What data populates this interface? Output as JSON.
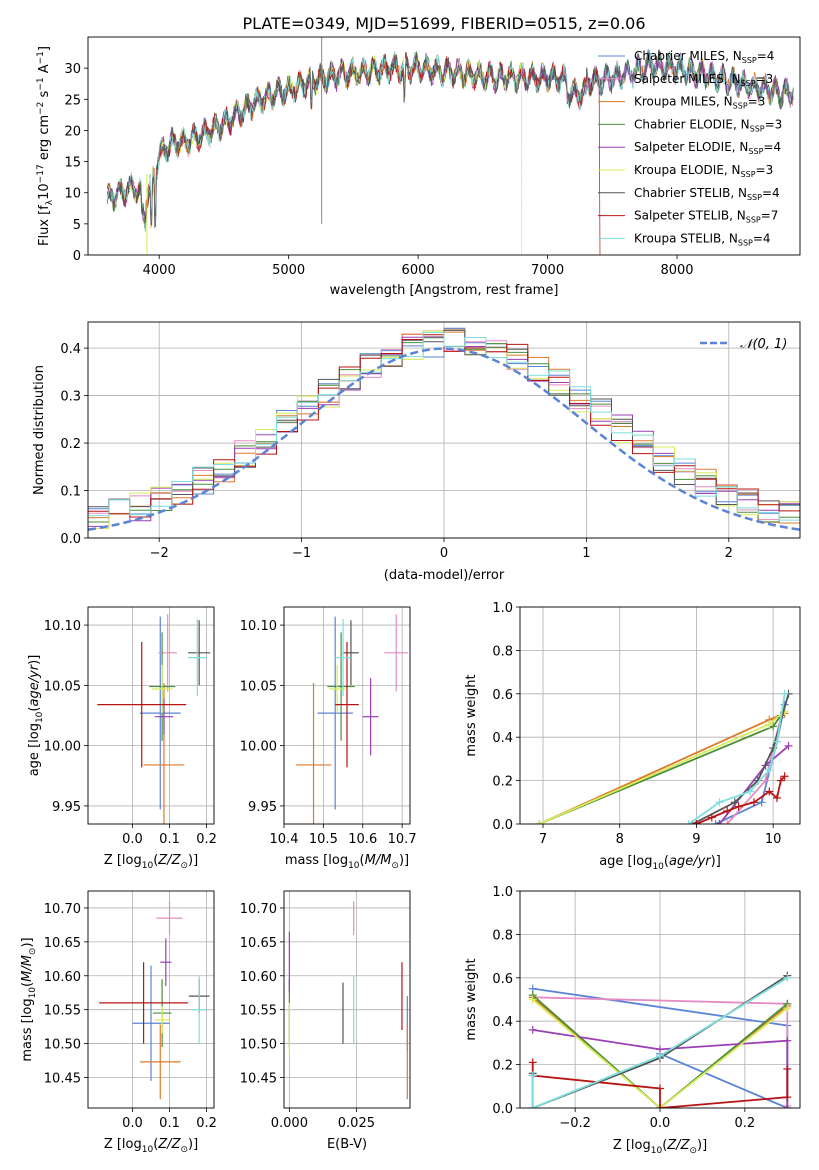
{
  "figure": {
    "title": "PLATE=0349, MJD=51699, FIBERID=0515, z=0.06"
  },
  "colors": {
    "Chabrier MILES": "#5b84d6",
    "Salpeter MILES": "#e58bc3",
    "Kroupa MILES": "#dd7a2a",
    "Chabrier ELODIE": "#4c8f3a",
    "Salpeter ELODIE": "#9b3fb5",
    "Kroupa ELODIE": "#d6ec5a",
    "Chabrier STELIB": "#555555",
    "Salpeter STELIB": "#b81414",
    "Kroupa STELIB": "#7fdede"
  },
  "chart_data": [
    {
      "id": "spectrum",
      "type": "line",
      "title": "PLATE=0349, MJD=51699, FIBERID=0515, z=0.06",
      "xlabel": "wavelength [Angstrom, rest frame]",
      "ylabel": "Flux [f_λ 10^-17 erg cm^-2 s^-1 A^-1]",
      "xlim": [
        3450,
        8950
      ],
      "ylim": [
        0,
        35
      ],
      "xticks": [
        4000,
        5000,
        6000,
        7000,
        8000
      ],
      "yticks": [
        0,
        5,
        10,
        15,
        20,
        25,
        30
      ],
      "legend_position": "right",
      "legend": [
        "Chabrier MILES, N_SSP=4",
        "Salpeter MILES, N_SSP=3",
        "Kroupa MILES, N_SSP=3",
        "Chabrier ELODIE, N_SSP=3",
        "Salpeter ELODIE, N_SSP=4",
        "Kroupa ELODIE, N_SSP=3",
        "Chabrier STELIB, N_SSP=4",
        "Salpeter STELIB, N_SSP=7",
        "Kroupa STELIB, N_SSP=4"
      ],
      "continuum": {
        "x": [
          3600,
          3700,
          3800,
          3900,
          3950,
          4000,
          4100,
          4200,
          4300,
          4500,
          4700,
          4900,
          5000,
          5200,
          5400,
          5600,
          5800,
          6000,
          6200,
          6400,
          6600,
          6800,
          7000,
          7200,
          7400,
          7600,
          7800,
          8000,
          8200,
          8400,
          8600,
          8800
        ],
        "y": [
          9,
          10,
          11,
          9,
          12,
          16,
          18,
          18,
          19,
          21,
          24,
          26,
          26.5,
          28,
          29,
          29.5,
          30,
          30,
          29.5,
          29,
          28.5,
          28.5,
          28.5,
          28,
          28,
          29,
          30.5,
          30,
          29,
          28,
          27,
          26
        ]
      }
    },
    {
      "id": "residuals",
      "type": "histogram",
      "xlabel": "(data-model)/error",
      "ylabel": "Normed distribution",
      "xlim": [
        -2.5,
        2.5
      ],
      "ylim": [
        0,
        0.455
      ],
      "xticks": [
        -2,
        -1,
        0,
        1,
        2
      ],
      "yticks": [
        0.0,
        0.1,
        0.2,
        0.3,
        0.4
      ],
      "grid": true,
      "legend_position": "top-right",
      "legend": [
        "N(0,1)"
      ],
      "reference_curve": "normal(0,1)",
      "bins": 34
    },
    {
      "id": "age-vs-Z",
      "type": "errorbar",
      "xlabel": "Z [log10(Z/Z⊙)]",
      "ylabel": "age  [log10(age/yr)]",
      "xlim": [
        -0.12,
        0.22
      ],
      "ylim": [
        9.935,
        10.115
      ],
      "xticks": [
        0.0,
        0.1,
        0.2
      ],
      "yticks": [
        9.95,
        10.0,
        10.05,
        10.1
      ],
      "grid": true,
      "points": [
        {
          "series": "Chabrier MILES",
          "x": 0.075,
          "xerr": 0.055,
          "y": 10.027,
          "yerr": 0.08
        },
        {
          "series": "Salpeter MILES",
          "x": 0.095,
          "xerr": 0.025,
          "y": 10.077,
          "yerr": 0.032
        },
        {
          "series": "Kroupa MILES",
          "x": 0.085,
          "xerr": 0.055,
          "y": 9.984,
          "yerr": 0.068
        },
        {
          "series": "Chabrier ELODIE",
          "x": 0.08,
          "xerr": 0.035,
          "y": 10.049,
          "yerr": 0.045
        },
        {
          "series": "Salpeter ELODIE",
          "x": 0.085,
          "xerr": 0.025,
          "y": 10.024,
          "yerr": 0.015
        },
        {
          "series": "Kroupa ELODIE",
          "x": 0.08,
          "xerr": 0.028,
          "y": 10.047,
          "yerr": 0.02
        },
        {
          "series": "Chabrier STELIB",
          "x": 0.18,
          "xerr": 0.03,
          "y": 10.077,
          "yerr": 0.027
        },
        {
          "series": "Salpeter STELIB",
          "x": 0.025,
          "xerr": 0.12,
          "y": 10.034,
          "yerr": 0.052
        },
        {
          "series": "Kroupa STELIB",
          "x": 0.175,
          "xerr": 0.025,
          "y": 10.073,
          "yerr": 0.032
        }
      ]
    },
    {
      "id": "age-vs-mass",
      "type": "errorbar",
      "xlabel": "mass [log10(M/M⊙)]",
      "ylabel": "",
      "xlim": [
        10.4,
        10.72
      ],
      "ylim": [
        9.935,
        10.115
      ],
      "xticks": [
        10.4,
        10.5,
        10.6,
        10.7
      ],
      "yticks": [
        9.95,
        10.0,
        10.05,
        10.1
      ],
      "grid": true,
      "points": [
        {
          "series": "Chabrier MILES",
          "x": 10.53,
          "xerr": 0.045,
          "y": 10.027,
          "yerr": 0.08
        },
        {
          "series": "Salpeter MILES",
          "x": 10.685,
          "xerr": 0.03,
          "y": 10.077,
          "yerr": 0.032
        },
        {
          "series": "Kroupa MILES",
          "x": 10.475,
          "xerr": 0.045,
          "y": 9.984,
          "yerr": 0.068
        },
        {
          "series": "Chabrier ELODIE",
          "x": 10.545,
          "xerr": 0.035,
          "y": 10.049,
          "yerr": 0.045
        },
        {
          "series": "Salpeter ELODIE",
          "x": 10.62,
          "xerr": 0.02,
          "y": 10.024,
          "yerr": 0.032
        },
        {
          "series": "Kroupa ELODIE",
          "x": 10.535,
          "xerr": 0.02,
          "y": 10.047,
          "yerr": 0.02
        },
        {
          "series": "Chabrier STELIB",
          "x": 10.57,
          "xerr": 0.02,
          "y": 10.077,
          "yerr": 0.027
        },
        {
          "series": "Salpeter STELIB",
          "x": 10.56,
          "xerr": 0.03,
          "y": 10.034,
          "yerr": 0.052
        },
        {
          "series": "Kroupa STELIB",
          "x": 10.55,
          "xerr": 0.02,
          "y": 10.073,
          "yerr": 0.032
        }
      ]
    },
    {
      "id": "weight-vs-age",
      "type": "line",
      "xlabel": "age  [log10(age/yr)]",
      "ylabel": "mass weight",
      "xlim": [
        6.7,
        10.35
      ],
      "ylim": [
        0,
        1.0
      ],
      "xticks": [
        7,
        8,
        9,
        10
      ],
      "yticks": [
        0.0,
        0.2,
        0.4,
        0.6,
        0.8,
        1.0
      ],
      "grid": true,
      "series": [
        {
          "name": "Chabrier MILES",
          "x": [
            9.25,
            9.85,
            10.05,
            10.15
          ],
          "y": [
            0.0,
            0.1,
            0.38,
            0.55
          ]
        },
        {
          "name": "Salpeter MILES",
          "x": [
            9.4,
            9.9,
            10.1
          ],
          "y": [
            0.0,
            0.2,
            0.49
          ]
        },
        {
          "name": "Kroupa MILES",
          "x": [
            6.95,
            9.95,
            10.15
          ],
          "y": [
            0.0,
            0.48,
            0.51
          ]
        },
        {
          "name": "Chabrier ELODIE",
          "x": [
            6.95,
            10.0,
            10.1
          ],
          "y": [
            0.0,
            0.45,
            0.5
          ]
        },
        {
          "name": "Salpeter ELODIE",
          "x": [
            9.3,
            9.9,
            10.2
          ],
          "y": [
            0.0,
            0.27,
            0.36
          ]
        },
        {
          "name": "Kroupa ELODIE",
          "x": [
            6.95,
            9.95,
            10.15
          ],
          "y": [
            0.0,
            0.46,
            0.52
          ]
        },
        {
          "name": "Chabrier STELIB",
          "x": [
            8.95,
            9.5,
            9.8,
            10.0,
            10.2
          ],
          "y": [
            0.0,
            0.1,
            0.2,
            0.35,
            0.6
          ]
        },
        {
          "name": "Salpeter STELIB",
          "x": [
            9.0,
            9.2,
            9.4,
            9.55,
            9.75,
            9.95,
            10.05,
            10.1,
            10.15
          ],
          "y": [
            0.0,
            0.03,
            0.06,
            0.08,
            0.1,
            0.15,
            0.12,
            0.2,
            0.22
          ]
        },
        {
          "name": "Kroupa STELIB",
          "x": [
            8.9,
            9.3,
            9.7,
            9.95,
            10.05,
            10.15
          ],
          "y": [
            0.0,
            0.1,
            0.15,
            0.25,
            0.38,
            0.6
          ]
        }
      ]
    },
    {
      "id": "mass-vs-Z",
      "type": "errorbar",
      "xlabel": "Z [log10(Z/Z⊙)]",
      "ylabel": "mass [log10(M/M⊙)]",
      "xlim": [
        -0.12,
        0.22
      ],
      "ylim": [
        10.405,
        10.725
      ],
      "xticks": [
        0.0,
        0.1,
        0.2
      ],
      "yticks": [
        10.45,
        10.5,
        10.55,
        10.6,
        10.65,
        10.7
      ],
      "grid": true,
      "points": [
        {
          "series": "Chabrier MILES",
          "x": 0.05,
          "xerr": 0.05,
          "y": 10.53,
          "yerr": 0.085
        },
        {
          "series": "Salpeter MILES",
          "x": 0.1,
          "xerr": 0.035,
          "y": 10.685,
          "yerr": 0.025
        },
        {
          "series": "Kroupa MILES",
          "x": 0.075,
          "xerr": 0.055,
          "y": 10.473,
          "yerr": 0.055
        },
        {
          "series": "Chabrier ELODIE",
          "x": 0.08,
          "xerr": 0.025,
          "y": 10.545,
          "yerr": 0.05
        },
        {
          "series": "Salpeter ELODIE",
          "x": 0.09,
          "xerr": 0.015,
          "y": 10.62,
          "yerr": 0.035
        },
        {
          "series": "Kroupa ELODIE",
          "x": 0.08,
          "xerr": 0.02,
          "y": 10.535,
          "yerr": 0.02
        },
        {
          "series": "Chabrier STELIB",
          "x": 0.18,
          "xerr": 0.028,
          "y": 10.57,
          "yerr": 0.025
        },
        {
          "series": "Salpeter STELIB",
          "x": 0.03,
          "xerr": 0.12,
          "y": 10.56,
          "yerr": 0.06
        },
        {
          "series": "Kroupa STELIB",
          "x": 0.18,
          "xerr": 0.02,
          "y": 10.55,
          "yerr": 0.05
        }
      ]
    },
    {
      "id": "mass-vs-EBV",
      "type": "errorbar",
      "xlabel": "E(B-V)",
      "ylabel": "",
      "xlim": [
        -0.002,
        0.045
      ],
      "ylim": [
        10.405,
        10.725
      ],
      "xticks": [
        0.0,
        0.025
      ],
      "yticks": [
        10.45,
        10.5,
        10.55,
        10.6,
        10.65,
        10.7
      ],
      "grid": true,
      "points": [
        {
          "series": "Chabrier MILES",
          "x": 0.044,
          "xerr": 0,
          "y": 10.53,
          "yerr": 0.04
        },
        {
          "series": "Salpeter MILES",
          "x": 0.024,
          "xerr": 0,
          "y": 10.685,
          "yerr": 0.025
        },
        {
          "series": "Kroupa MILES",
          "x": 0.044,
          "xerr": 0,
          "y": 10.473,
          "yerr": 0.055
        },
        {
          "series": "Chabrier ELODIE",
          "x": 0.0,
          "xerr": 0,
          "y": 10.545,
          "yerr": 0.05
        },
        {
          "series": "Salpeter ELODIE",
          "x": 0.0,
          "xerr": 0,
          "y": 10.62,
          "yerr": 0.045
        },
        {
          "series": "Kroupa ELODIE",
          "x": 0.0,
          "xerr": 0,
          "y": 10.52,
          "yerr": 0.04
        },
        {
          "series": "Chabrier STELIB",
          "x": 0.02,
          "xerr": 0,
          "y": 10.545,
          "yerr": 0.045
        },
        {
          "series": "Salpeter STELIB",
          "x": 0.042,
          "xerr": 0,
          "y": 10.57,
          "yerr": 0.05
        },
        {
          "series": "Kroupa STELIB",
          "x": 0.024,
          "xerr": 0,
          "y": 10.55,
          "yerr": 0.05
        }
      ]
    },
    {
      "id": "weight-vs-Z",
      "type": "line",
      "xlabel": "Z [log10(Z/Z⊙)]",
      "ylabel": "mass weight",
      "xlim": [
        -0.33,
        0.33
      ],
      "ylim": [
        0,
        1.0
      ],
      "xticks": [
        -0.2,
        0.0,
        0.2
      ],
      "yticks": [
        0.0,
        0.2,
        0.4,
        0.6,
        0.8,
        1.0
      ],
      "grid": true,
      "series": [
        {
          "name": "Chabrier MILES",
          "x": [
            -0.3,
            0.3,
            0.3,
            0.0
          ],
          "y": [
            0.55,
            0.38,
            0.0,
            0.25
          ]
        },
        {
          "name": "Salpeter MILES",
          "x": [
            -0.3,
            0.3,
            0.3
          ],
          "y": [
            0.51,
            0.48,
            0.01
          ]
        },
        {
          "name": "Kroupa MILES",
          "x": [
            -0.3,
            0.0,
            0.3
          ],
          "y": [
            0.51,
            0.0,
            0.47
          ]
        },
        {
          "name": "Chabrier ELODIE",
          "x": [
            -0.3,
            0.0,
            0.3
          ],
          "y": [
            0.52,
            0.0,
            0.48
          ]
        },
        {
          "name": "Salpeter ELODIE",
          "x": [
            -0.3,
            0.0,
            0.3,
            0.3
          ],
          "y": [
            0.36,
            0.27,
            0.31,
            0.0
          ]
        },
        {
          "name": "Kroupa ELODIE",
          "x": [
            -0.3,
            0.0,
            0.3
          ],
          "y": [
            0.5,
            0.0,
            0.46
          ]
        },
        {
          "name": "Chabrier STELIB",
          "x": [
            -0.3,
            -0.3,
            0.0,
            0.3
          ],
          "y": [
            0.16,
            0.0,
            0.23,
            0.61
          ]
        },
        {
          "name": "Salpeter STELIB",
          "x": [
            -0.3,
            -0.3,
            0.0,
            0.0,
            0.3,
            0.3
          ],
          "y": [
            0.21,
            0.15,
            0.09,
            0.0,
            0.05,
            0.18
          ]
        },
        {
          "name": "Kroupa STELIB",
          "x": [
            -0.3,
            -0.3,
            0.0,
            0.3
          ],
          "y": [
            0.15,
            0.0,
            0.24,
            0.6
          ]
        }
      ]
    }
  ]
}
